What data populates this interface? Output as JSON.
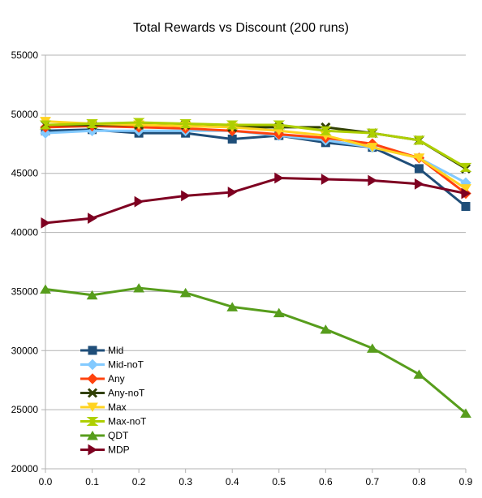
{
  "chart_data": {
    "type": "line",
    "title": "Total Rewards vs Discount (200 runs)",
    "xlabel": "",
    "ylabel": "",
    "x": [
      0.0,
      0.1,
      0.2,
      0.3,
      0.4,
      0.5,
      0.6,
      0.7,
      0.8,
      0.9
    ],
    "x_tick_labels": [
      "0.0",
      "0.1",
      "0.2",
      "0.3",
      "0.4",
      "0.5",
      "0.6",
      "0.7",
      "0.8",
      "0.9"
    ],
    "xlim": [
      0,
      0.9
    ],
    "ylim": [
      20000,
      55000
    ],
    "y_ticks": [
      20000,
      25000,
      30000,
      35000,
      40000,
      45000,
      50000,
      55000
    ],
    "y_tick_labels": [
      "20000",
      "25000",
      "30000",
      "35000",
      "40000",
      "45000",
      "50000",
      "55000"
    ],
    "grid": "horizontal",
    "legend_position": "lower-left inside",
    "series": [
      {
        "name": "Mid",
        "color": "#1f4e79",
        "marker": "square",
        "values": [
          48600,
          48700,
          48400,
          48400,
          47900,
          48200,
          47600,
          47200,
          45400,
          42200
        ]
      },
      {
        "name": "Mid-noT",
        "color": "#83caff",
        "marker": "diamond",
        "values": [
          48400,
          48600,
          48600,
          48600,
          48600,
          48200,
          47800,
          47200,
          46300,
          44200
        ]
      },
      {
        "name": "Any",
        "color": "#ff420e",
        "marker": "diamond",
        "values": [
          48900,
          49000,
          48900,
          48800,
          48600,
          48300,
          48000,
          47500,
          46300,
          43300
        ]
      },
      {
        "name": "Any-noT",
        "color": "#314004",
        "marker": "x",
        "values": [
          49100,
          49100,
          49100,
          49100,
          48900,
          48900,
          48900,
          48400,
          47800,
          45400
        ]
      },
      {
        "name": "Max",
        "color": "#ffd320",
        "marker": "triangle-down",
        "values": [
          49400,
          49200,
          49100,
          49000,
          48900,
          48600,
          48200,
          47200,
          46300,
          43700
        ]
      },
      {
        "name": "Max-noT",
        "color": "#aecf00",
        "marker": "hourglass",
        "values": [
          49100,
          49200,
          49300,
          49200,
          49100,
          49100,
          48600,
          48400,
          47800,
          45500
        ]
      },
      {
        "name": "QDT",
        "color": "#579d1c",
        "marker": "triangle-up",
        "values": [
          35200,
          34700,
          35300,
          34900,
          33700,
          33200,
          31800,
          30200,
          28000,
          24700
        ]
      },
      {
        "name": "MDP",
        "color": "#7e0021",
        "marker": "triangle-right",
        "values": [
          40800,
          41200,
          42600,
          43100,
          43400,
          44600,
          44500,
          44400,
          44100,
          43300
        ]
      }
    ]
  }
}
